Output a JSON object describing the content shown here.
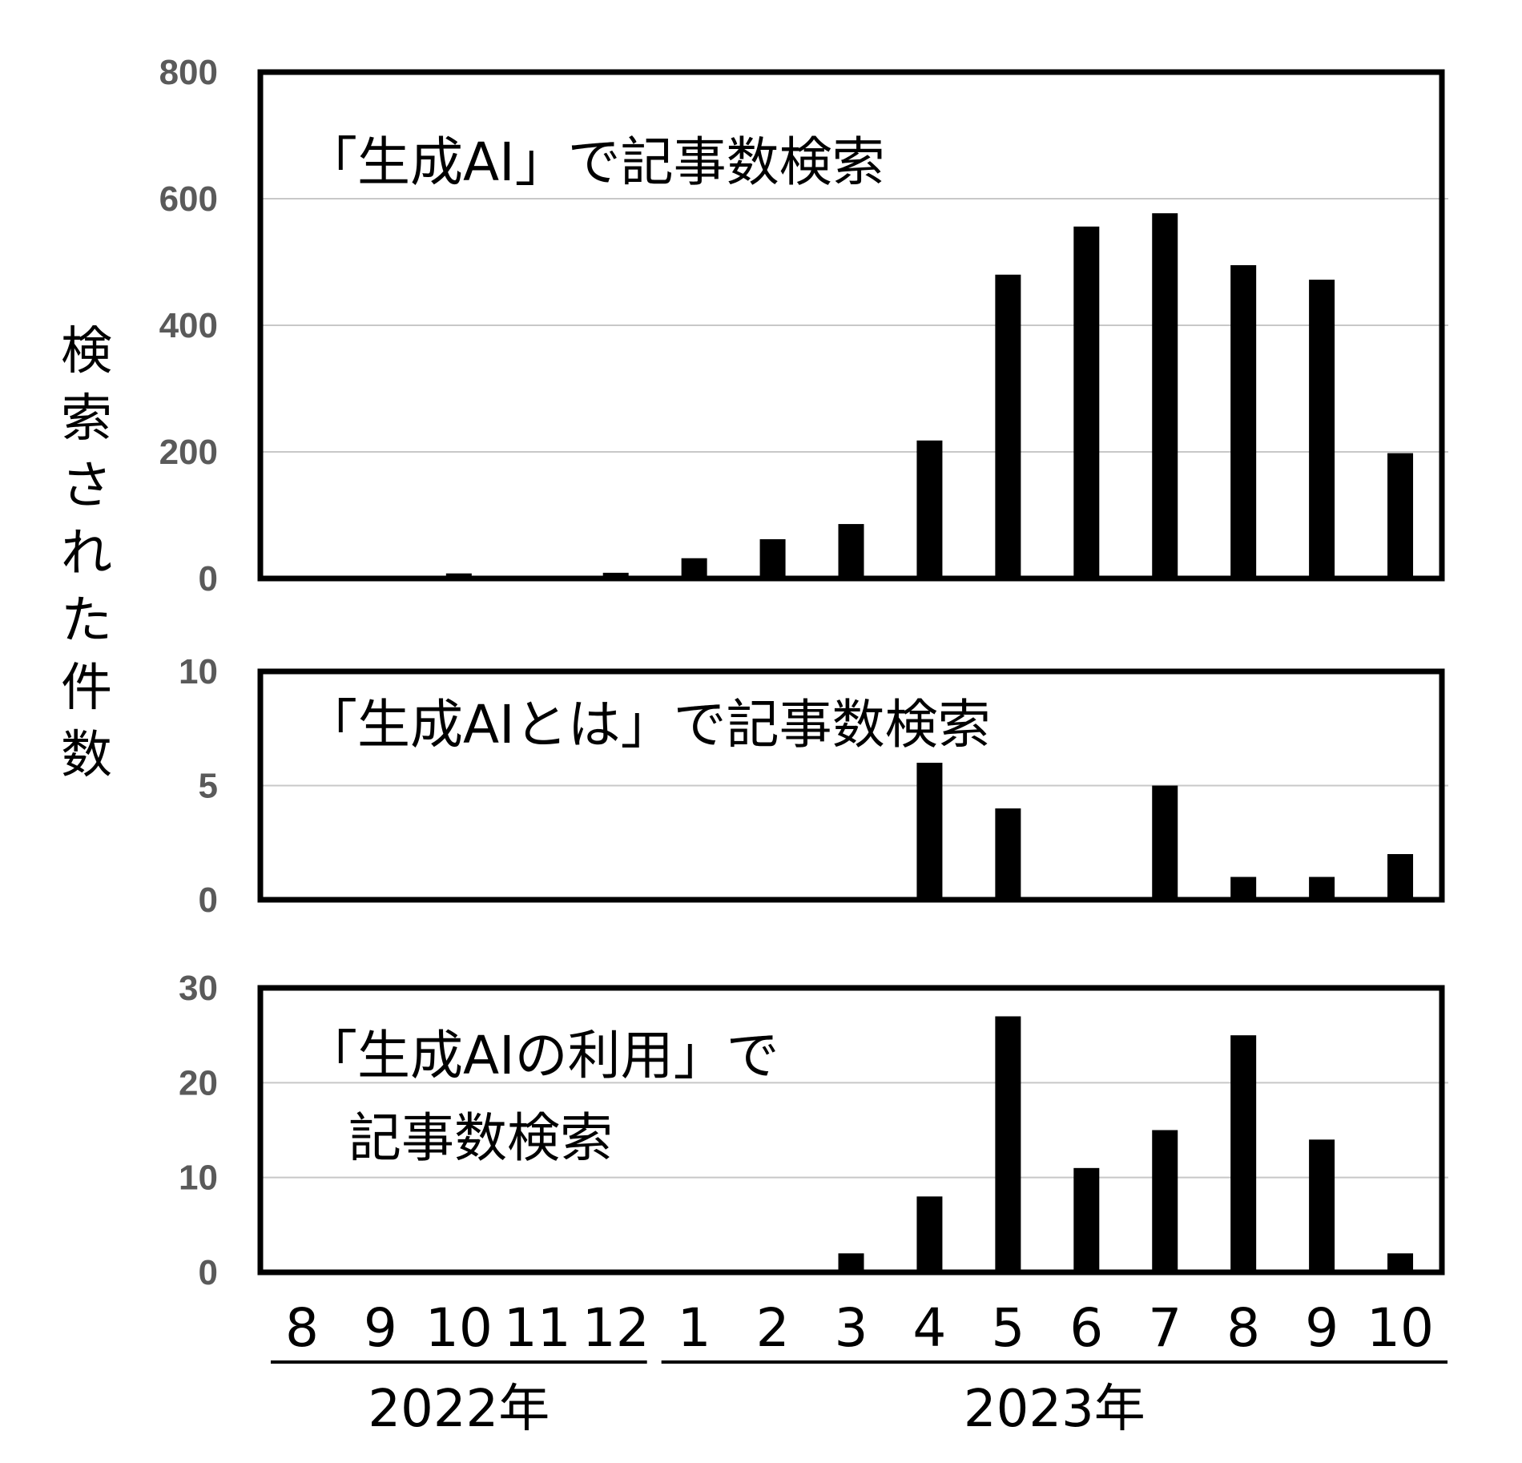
{
  "chart_data": [
    {
      "type": "bar",
      "title": "「生成AI」で記事数検索",
      "ylabel": "検索された件数",
      "categories": [
        "8",
        "9",
        "10",
        "11",
        "12",
        "1",
        "2",
        "3",
        "4",
        "5",
        "6",
        "7",
        "8",
        "9",
        "10"
      ],
      "values": [
        0,
        3,
        8,
        4,
        9,
        32,
        62,
        86,
        218,
        480,
        556,
        577,
        495,
        472,
        198
      ],
      "ylim": [
        0,
        800
      ],
      "yticks": [
        "0",
        "200",
        "400",
        "600",
        "800"
      ],
      "grid": true
    },
    {
      "type": "bar",
      "title": "「生成AIとは」で記事数検索",
      "categories": [
        "8",
        "9",
        "10",
        "11",
        "12",
        "1",
        "2",
        "3",
        "4",
        "5",
        "6",
        "7",
        "8",
        "9",
        "10"
      ],
      "values": [
        0,
        0,
        0,
        0,
        0,
        0,
        0,
        0,
        6,
        4,
        0,
        5,
        1,
        1,
        2
      ],
      "ylim": [
        0,
        10
      ],
      "yticks": [
        "0",
        "5",
        "10"
      ],
      "grid": true
    },
    {
      "type": "bar",
      "title": [
        "「生成AIの利用」で",
        "記事数検索"
      ],
      "categories": [
        "8",
        "9",
        "10",
        "11",
        "12",
        "1",
        "2",
        "3",
        "4",
        "5",
        "6",
        "7",
        "8",
        "9",
        "10"
      ],
      "values": [
        0,
        0,
        0,
        0,
        0,
        0,
        0,
        2,
        8,
        27,
        11,
        15,
        25,
        14,
        2
      ],
      "ylim": [
        0,
        30
      ],
      "yticks": [
        "0",
        "10",
        "20",
        "30"
      ],
      "grid": true
    }
  ],
  "x_axis": {
    "months": [
      "8",
      "9",
      "10",
      "11",
      "12",
      "1",
      "2",
      "3",
      "4",
      "5",
      "6",
      "7",
      "8",
      "9",
      "10"
    ],
    "year_groups": [
      {
        "label": "2022年",
        "from": 0,
        "to": 4
      },
      {
        "label": "2023年",
        "from": 5,
        "to": 14
      }
    ]
  },
  "y_axis_label_chars": [
    "検",
    "索",
    "さ",
    "れ",
    "た",
    "件",
    "数"
  ],
  "colors": {
    "bar": "#000000",
    "grid": "#c8c8c8",
    "tick": "#5a5a5a",
    "frame": "#000000"
  }
}
